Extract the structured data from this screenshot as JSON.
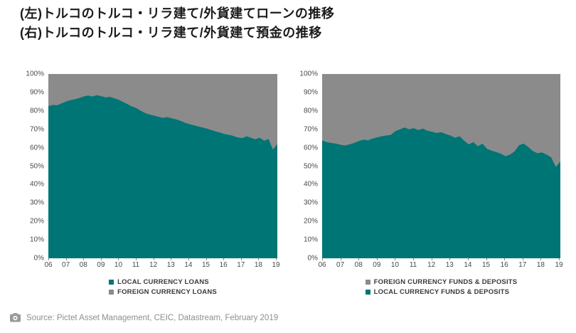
{
  "title": {
    "line1": "(左)トルコのトルコ・リラ建て/外貨建てローンの推移",
    "line2": "(右)トルコのトルコ・リラ建て/外貨建て預金の推移"
  },
  "source": {
    "icon": "camera-icon",
    "text": "Source: Pictet Asset Management, CEIC, Datastream, February 2019"
  },
  "colors": {
    "teal": "#007576",
    "gray": "#8B8B8B",
    "axis_text": "#4a4a4a",
    "legend_text": "#3a3a3a",
    "source_text": "#8e8e8e"
  },
  "chart_data": [
    {
      "type": "area",
      "panel": "left",
      "stacked_percent": true,
      "x_start": 2006,
      "x_step_years": 0.25,
      "x_tick_labels": [
        "06",
        "07",
        "08",
        "09",
        "10",
        "11",
        "12",
        "13",
        "14",
        "15",
        "16",
        "17",
        "18",
        "19"
      ],
      "y_tick_labels": [
        "100%",
        "90%",
        "80%",
        "70%",
        "60%",
        "50%",
        "40%",
        "30%",
        "20%",
        "10%",
        "0%"
      ],
      "ylim": [
        0,
        100
      ],
      "grid": false,
      "legend_position": "bottom",
      "legend": [
        {
          "label": "LOCAL CURRENCY LOANS",
          "color": "#007576"
        },
        {
          "label": "FOREIGN CURRENCY LOANS",
          "color": "#8B8B8B"
        }
      ],
      "series": [
        {
          "name": "LOCAL CURRENCY LOANS",
          "color": "#007576",
          "values": [
            82.5,
            83.2,
            83.0,
            84.0,
            85.0,
            85.8,
            86.3,
            87.0,
            87.8,
            88.3,
            87.8,
            88.5,
            88.0,
            87.3,
            87.6,
            86.8,
            86.0,
            84.8,
            83.6,
            82.4,
            81.5,
            80.0,
            78.8,
            78.0,
            77.4,
            76.8,
            76.2,
            76.6,
            76.0,
            75.4,
            74.6,
            73.6,
            72.8,
            72.2,
            71.6,
            71.0,
            70.4,
            69.6,
            68.8,
            68.2,
            67.4,
            67.0,
            66.4,
            65.6,
            65.2,
            66.2,
            65.4,
            64.6,
            65.4,
            63.8,
            64.8,
            59.0,
            62.0
          ]
        },
        {
          "name": "FOREIGN CURRENCY LOANS",
          "color": "#8B8B8B",
          "values": [
            17.5,
            16.8,
            17.0,
            16.0,
            15.0,
            14.2,
            13.7,
            13.0,
            12.2,
            11.7,
            12.2,
            11.5,
            12.0,
            12.7,
            12.4,
            13.2,
            14.0,
            15.2,
            16.4,
            17.6,
            18.5,
            20.0,
            21.2,
            22.0,
            22.6,
            23.2,
            23.8,
            23.4,
            24.0,
            24.6,
            25.4,
            26.4,
            27.2,
            27.8,
            28.4,
            29.0,
            29.6,
            30.4,
            31.2,
            31.8,
            32.6,
            33.0,
            33.6,
            34.4,
            34.8,
            33.8,
            34.6,
            35.4,
            34.6,
            36.2,
            35.2,
            41.0,
            38.0
          ]
        }
      ]
    },
    {
      "type": "area",
      "panel": "right",
      "stacked_percent": true,
      "x_start": 2006,
      "x_step_years": 0.25,
      "x_tick_labels": [
        "06",
        "07",
        "08",
        "09",
        "10",
        "11",
        "12",
        "13",
        "14",
        "15",
        "16",
        "17",
        "18",
        "19"
      ],
      "y_tick_labels": [
        "100%",
        "90%",
        "80%",
        "70%",
        "60%",
        "50%",
        "40%",
        "30%",
        "20%",
        "10%",
        "0%"
      ],
      "ylim": [
        0,
        100
      ],
      "grid": false,
      "legend_position": "bottom",
      "legend": [
        {
          "label": "FOREIGN CURRENCY FUNDS & DEPOSITS",
          "color": "#8B8B8B"
        },
        {
          "label": "LOCAL CURRENCY FUNDS & DEPOSITS",
          "color": "#007576"
        }
      ],
      "series": [
        {
          "name": "LOCAL CURRENCY FUNDS & DEPOSITS",
          "color": "#007576",
          "values": [
            64.0,
            63.0,
            62.6,
            62.2,
            61.6,
            61.2,
            61.8,
            62.6,
            63.6,
            64.4,
            64.0,
            65.0,
            65.6,
            66.2,
            66.6,
            67.0,
            69.0,
            70.0,
            71.0,
            70.0,
            70.6,
            69.6,
            70.4,
            69.2,
            68.6,
            68.0,
            68.4,
            67.4,
            66.6,
            65.4,
            66.2,
            63.8,
            61.8,
            63.0,
            60.8,
            62.2,
            59.4,
            58.4,
            57.6,
            56.8,
            55.4,
            56.2,
            58.0,
            61.4,
            62.2,
            60.4,
            58.2,
            57.0,
            57.4,
            56.2,
            54.8,
            49.6,
            52.5
          ]
        },
        {
          "name": "FOREIGN CURRENCY FUNDS & DEPOSITS",
          "color": "#8B8B8B",
          "values": [
            36.0,
            37.0,
            37.4,
            37.8,
            38.4,
            38.8,
            38.2,
            37.4,
            36.4,
            35.6,
            36.0,
            35.0,
            34.4,
            33.8,
            33.4,
            33.0,
            31.0,
            30.0,
            29.0,
            30.0,
            29.4,
            30.4,
            29.6,
            30.8,
            31.4,
            32.0,
            31.6,
            32.6,
            33.4,
            34.6,
            33.8,
            36.2,
            38.2,
            37.0,
            39.2,
            37.8,
            40.6,
            41.6,
            42.4,
            43.2,
            44.6,
            43.8,
            42.0,
            38.6,
            37.8,
            39.6,
            41.8,
            43.0,
            42.6,
            43.8,
            45.2,
            50.4,
            47.5
          ]
        }
      ]
    }
  ]
}
